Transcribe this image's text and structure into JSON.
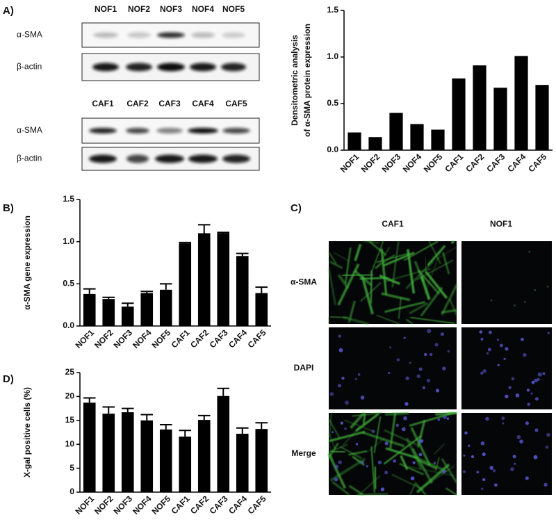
{
  "panel_labels": [
    "A)",
    "B)",
    "C)",
    "D)"
  ],
  "blots": [
    {
      "lanes": [
        "NOF1",
        "NOF2",
        "NOF3",
        "NOF4",
        "NOF5"
      ],
      "rows": [
        "α-SMA",
        "β-actin"
      ]
    },
    {
      "lanes": [
        "CAF1",
        "CAF2",
        "CAF3",
        "CAF4",
        "CAF5"
      ],
      "rows": [
        "α-SMA",
        "β-actin"
      ]
    }
  ],
  "microscopy": {
    "columns": [
      "CAF1",
      "NOF1"
    ],
    "rows": [
      "α-SMA",
      "DAPI",
      "Merge"
    ]
  },
  "chart_data": [
    {
      "type": "bar",
      "ylabel": [
        "Densitometric analysis",
        "of α-SMA protein expression"
      ],
      "categories": [
        "NOF1",
        "NOF2",
        "NOF3",
        "NOF4",
        "NOF5",
        "CAF1",
        "CAF2",
        "CAF3",
        "CAF4",
        "CAF5"
      ],
      "values": [
        0.19,
        0.14,
        0.4,
        0.28,
        0.22,
        0.77,
        0.91,
        0.67,
        1.01,
        0.7
      ],
      "color": "#000000",
      "ylim": [
        0,
        1.5
      ],
      "yticks": [
        {
          "value": 0,
          "label": "0.0"
        },
        0.5,
        {
          "value": 1,
          "label": "1.0"
        },
        1.5
      ]
    },
    {
      "type": "bar",
      "ylabel": [
        "α-SMA gene expression"
      ],
      "categories": [
        "NOF1",
        "NOF2",
        "NOF3",
        "NOF4",
        "NOF5",
        "CAF1",
        "CAF2",
        "CAF3",
        "CAF4",
        "CAF5"
      ],
      "values": [
        0.38,
        0.32,
        0.23,
        0.39,
        0.43,
        0.98,
        1.1,
        1.1,
        0.83,
        0.39
      ],
      "errors": [
        0.06,
        0.02,
        0.04,
        0.02,
        0.07,
        0.01,
        0.1,
        0.01,
        0.03,
        0.07
      ],
      "color": "#000000",
      "ylim": [
        0,
        1.5
      ],
      "yticks": [
        {
          "value": 0,
          "label": "0.0"
        },
        0.5,
        {
          "value": 1,
          "label": "1.0"
        },
        1.5
      ]
    },
    {
      "type": "bar",
      "ylabel": [
        "X-gal positive cells (%)"
      ],
      "categories": [
        "NOF1",
        "NOF2",
        "NOF3",
        "NOF4",
        "NOF5",
        "CAF1",
        "CAF2",
        "CAF3",
        "CAF4",
        "CAF5"
      ],
      "values": [
        18.7,
        16.4,
        16.7,
        15.0,
        13.1,
        11.6,
        15.1,
        20.1,
        12.2,
        13.2
      ],
      "errors": [
        1.0,
        1.4,
        0.8,
        1.2,
        1.0,
        1.3,
        0.9,
        1.6,
        1.2,
        1.3
      ],
      "color": "#000000",
      "ylim": [
        0,
        25
      ],
      "yticks": [
        0,
        5,
        10,
        15,
        20,
        25
      ]
    }
  ]
}
